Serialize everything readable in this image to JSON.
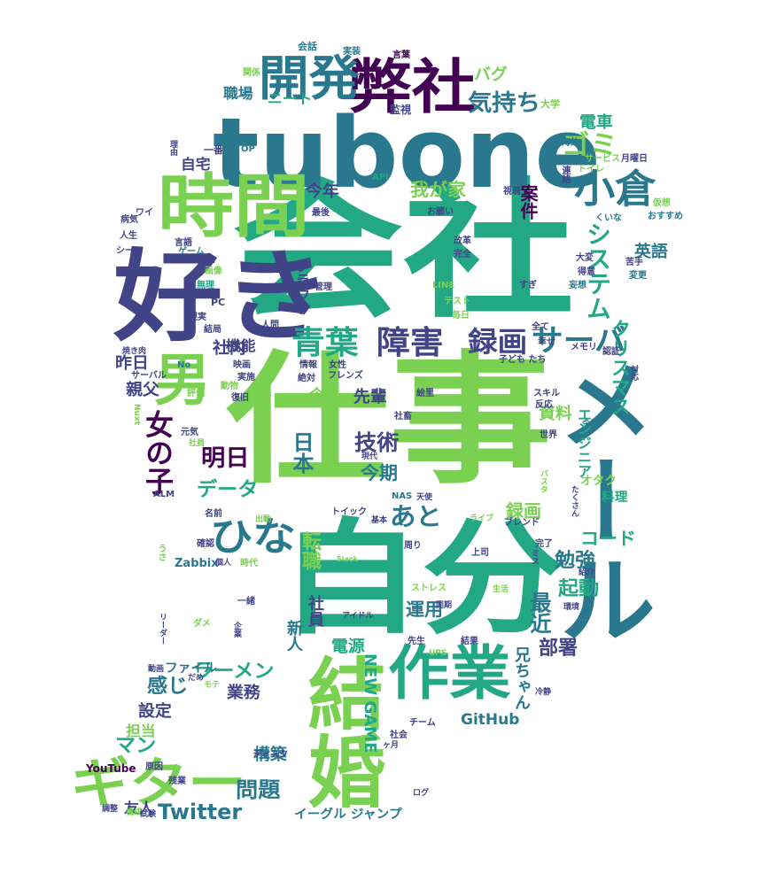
{
  "cloud": {
    "words": [
      {
        "text": "会社",
        "color": "#22a884"
      },
      {
        "text": "仕事",
        "color": "#7ad151"
      },
      {
        "text": "tubone",
        "color": "#2a788e"
      },
      {
        "text": "自分",
        "color": "#22a884"
      },
      {
        "text": "好き",
        "color": "#414487"
      },
      {
        "text": "時間",
        "color": "#7ad151"
      },
      {
        "text": "弊社",
        "color": "#440154"
      },
      {
        "text": "開発",
        "color": "#2a788e"
      },
      {
        "text": "作業",
        "color": "#22a884"
      },
      {
        "text": "結婚",
        "color": "#7ad151"
      },
      {
        "text": "ギター",
        "color": "#7ad151"
      },
      {
        "text": "小倉",
        "color": "#2a788e"
      },
      {
        "text": "メール",
        "color": "#2a788e"
      },
      {
        "text": "男",
        "color": "#7ad151"
      },
      {
        "text": "ひな",
        "color": "#2a788e"
      },
      {
        "text": "青葉",
        "color": "#22a884"
      },
      {
        "text": "障害",
        "color": "#414487"
      },
      {
        "text": "録画",
        "color": "#414487"
      },
      {
        "text": "サーバ",
        "color": "#2a788e"
      },
      {
        "text": "気持ち",
        "color": "#2a788e"
      },
      {
        "text": "Twitter",
        "color": "#2a788e"
      },
      {
        "text": "問題",
        "color": "#2a788e"
      },
      {
        "text": "GitHub",
        "color": "#2a788e"
      },
      {
        "text": "NEW GAME",
        "color": "#22a884"
      },
      {
        "text": "ゴミ",
        "color": "#7ad151"
      },
      {
        "text": "電車",
        "color": "#22a884"
      },
      {
        "text": "システム",
        "color": "#22a884"
      },
      {
        "text": "クリスマス",
        "color": "#22a884"
      },
      {
        "text": "女の子",
        "color": "#440154"
      },
      {
        "text": "明日",
        "color": "#440154"
      },
      {
        "text": "データ",
        "color": "#22a884"
      },
      {
        "text": "技術",
        "color": "#414487"
      },
      {
        "text": "日本",
        "color": "#2a788e"
      },
      {
        "text": "今期",
        "color": "#2a788e"
      },
      {
        "text": "あと",
        "color": "#2a788e"
      },
      {
        "text": "転職",
        "color": "#7ad151"
      },
      {
        "text": "録画",
        "color": "#7ad151"
      },
      {
        "text": "コード",
        "color": "#22a884"
      },
      {
        "text": "勉強",
        "color": "#2a788e"
      },
      {
        "text": "起動",
        "color": "#22a884"
      },
      {
        "text": "最近",
        "color": "#2a788e"
      },
      {
        "text": "部署",
        "color": "#414487"
      },
      {
        "text": "兄ちゃん",
        "color": "#2a788e"
      },
      {
        "text": "運用",
        "color": "#2a788e"
      },
      {
        "text": "ラーメン",
        "color": "#22a884"
      },
      {
        "text": "マン",
        "color": "#22a884"
      },
      {
        "text": "感じ",
        "color": "#2a788e"
      },
      {
        "text": "業務",
        "color": "#414487"
      },
      {
        "text": "構築",
        "color": "#2a788e"
      },
      {
        "text": "設定",
        "color": "#414487"
      },
      {
        "text": "新人",
        "color": "#2a788e"
      },
      {
        "text": "社員",
        "color": "#414487"
      },
      {
        "text": "電源",
        "color": "#22a884"
      },
      {
        "text": "英語",
        "color": "#2a788e"
      },
      {
        "text": "我が家",
        "color": "#7ad151"
      },
      {
        "text": "今年",
        "color": "#414487"
      },
      {
        "text": "自宅",
        "color": "#414487"
      },
      {
        "text": "職場",
        "color": "#2a788e"
      },
      {
        "text": "社内",
        "color": "#414487"
      },
      {
        "text": "機能",
        "color": "#414487"
      },
      {
        "text": "昨日",
        "color": "#414487"
      },
      {
        "text": "親父",
        "color": "#414487"
      },
      {
        "text": "先輩",
        "color": "#414487"
      },
      {
        "text": "企画",
        "color": "#7ad151"
      },
      {
        "text": "資料",
        "color": "#7ad151"
      },
      {
        "text": "案件",
        "color": "#440154"
      },
      {
        "text": "バグ",
        "color": "#7ad151"
      },
      {
        "text": "ニート",
        "color": "#22a884"
      },
      {
        "text": "クラウド",
        "color": "#414487"
      },
      {
        "text": "担当",
        "color": "#7ad151"
      },
      {
        "text": "イーグル ジャンプ",
        "color": "#2a788e"
      },
      {
        "text": "友人",
        "color": "#414487"
      },
      {
        "text": "YouTube",
        "color": "#440154"
      },
      {
        "text": "Zabbix",
        "color": "#2a788e"
      },
      {
        "text": "ファイル",
        "color": "#2a788e"
      },
      {
        "text": "エンジニア",
        "color": "#22a884"
      },
      {
        "text": "料理",
        "color": "#22a884"
      },
      {
        "text": "オタク",
        "color": "#7ad151"
      },
      {
        "text": "会話",
        "color": "#2a788e"
      },
      {
        "text": "実装",
        "color": "#2a788e"
      },
      {
        "text": "言葉",
        "color": "#440154"
      },
      {
        "text": "関係",
        "color": "#7ad151"
      },
      {
        "text": "監視",
        "color": "#414487"
      },
      {
        "text": "大学",
        "color": "#7ad151"
      },
      {
        "text": "海外",
        "color": "#2a788e"
      },
      {
        "text": "サービス",
        "color": "#7ad151"
      },
      {
        "text": "月曜日",
        "color": "#414487"
      },
      {
        "text": "連絡",
        "color": "#414487"
      },
      {
        "text": "トイレ",
        "color": "#7ad151"
      },
      {
        "text": "視聴",
        "color": "#414487"
      },
      {
        "text": "仮想",
        "color": "#7ad151"
      },
      {
        "text": "おすすめ",
        "color": "#2a788e"
      },
      {
        "text": "くいな",
        "color": "#2a788e"
      },
      {
        "text": "API",
        "color": "#22a884"
      },
      {
        "text": "最後",
        "color": "#414487"
      },
      {
        "text": "お願い",
        "color": "#414487"
      },
      {
        "text": "一番",
        "color": "#414487"
      },
      {
        "text": "OP",
        "color": "#2a788e"
      },
      {
        "text": "ワイ",
        "color": "#414487"
      },
      {
        "text": "病気",
        "color": "#414487"
      },
      {
        "text": "人生",
        "color": "#414487"
      },
      {
        "text": "シーン",
        "color": "#414487"
      },
      {
        "text": "言語",
        "color": "#414487"
      },
      {
        "text": "ゲーム",
        "color": "#2a788e"
      },
      {
        "text": "CI",
        "color": "#414487"
      },
      {
        "text": "画像",
        "color": "#7ad151"
      },
      {
        "text": "無理",
        "color": "#22a884"
      },
      {
        "text": "PC",
        "color": "#414487"
      },
      {
        "text": "現実",
        "color": "#414487"
      },
      {
        "text": "結局",
        "color": "#414487"
      },
      {
        "text": "人間",
        "color": "#414487"
      },
      {
        "text": "管理",
        "color": "#414487"
      },
      {
        "text": "改革",
        "color": "#414487"
      },
      {
        "text": "完全",
        "color": "#414487"
      },
      {
        "text": "大変",
        "color": "#414487"
      },
      {
        "text": "得意",
        "color": "#414487"
      },
      {
        "text": "苦手",
        "color": "#414487"
      },
      {
        "text": "変更",
        "color": "#2a788e"
      },
      {
        "text": "すぎ",
        "color": "#414487"
      },
      {
        "text": "妄想",
        "color": "#2a788e"
      },
      {
        "text": "LINE",
        "color": "#7ad151"
      },
      {
        "text": "テスト",
        "color": "#7ad151"
      },
      {
        "text": "毎日",
        "color": "#7ad151"
      },
      {
        "text": "全て",
        "color": "#414487"
      },
      {
        "text": "幸せ",
        "color": "#414487"
      },
      {
        "text": "メモリ",
        "color": "#414487"
      },
      {
        "text": "子ども たち",
        "color": "#414487"
      },
      {
        "text": "認証",
        "color": "#414487"
      },
      {
        "text": "焼き肉",
        "color": "#414487"
      },
      {
        "text": "No",
        "color": "#2a788e"
      },
      {
        "text": "サーバル",
        "color": "#414487"
      },
      {
        "text": "映画",
        "color": "#414487"
      },
      {
        "text": "実施",
        "color": "#414487"
      },
      {
        "text": "情報",
        "color": "#414487"
      },
      {
        "text": "絶対",
        "color": "#414487"
      },
      {
        "text": "女性",
        "color": "#414487"
      },
      {
        "text": "フレンズ",
        "color": "#414487"
      },
      {
        "text": "動物",
        "color": "#7ad151"
      },
      {
        "text": "復旧",
        "color": "#414487"
      },
      {
        "text": "評価",
        "color": "#7ad151"
      },
      {
        "text": "Nuxt",
        "color": "#7ad151"
      },
      {
        "text": "絵里",
        "color": "#414487"
      },
      {
        "text": "社畜",
        "color": "#414487"
      },
      {
        "text": "スキル",
        "color": "#414487"
      },
      {
        "text": "反応",
        "color": "#414487"
      },
      {
        "text": "今回",
        "color": "#2a788e"
      },
      {
        "text": "元気",
        "color": "#414487"
      },
      {
        "text": "社員",
        "color": "#7ad151"
      },
      {
        "text": "世界",
        "color": "#414487"
      },
      {
        "text": "現代",
        "color": "#414487"
      },
      {
        "text": "バスタ",
        "color": "#7ad151"
      },
      {
        "text": "ALM",
        "color": "#414487"
      },
      {
        "text": "NAS",
        "color": "#2a788e"
      },
      {
        "text": "天使",
        "color": "#414487"
      },
      {
        "text": "トイック",
        "color": "#414487"
      },
      {
        "text": "名前",
        "color": "#414487"
      },
      {
        "text": "出動",
        "color": "#7ad151"
      },
      {
        "text": "基本",
        "color": "#414487"
      },
      {
        "text": "ライブ",
        "color": "#7ad151"
      },
      {
        "text": "ブレンド",
        "color": "#414487"
      },
      {
        "text": "うさ",
        "color": "#7ad151"
      },
      {
        "text": "確認",
        "color": "#414487"
      },
      {
        "text": "個人",
        "color": "#414487"
      },
      {
        "text": "時代",
        "color": "#7ad151"
      },
      {
        "text": "Slack",
        "color": "#7ad151"
      },
      {
        "text": "周り",
        "color": "#414487"
      },
      {
        "text": "上司",
        "color": "#414487"
      },
      {
        "text": "完了",
        "color": "#414487"
      },
      {
        "text": "紹介",
        "color": "#414487"
      },
      {
        "text": "生活",
        "color": "#7ad151"
      },
      {
        "text": "環境",
        "color": "#414487"
      },
      {
        "text": "一緒",
        "color": "#414487"
      },
      {
        "text": "アイドル",
        "color": "#414487"
      },
      {
        "text": "同期",
        "color": "#414487"
      },
      {
        "text": "ストレス",
        "color": "#7ad151"
      },
      {
        "text": "リーダー",
        "color": "#414487"
      },
      {
        "text": "ダメ",
        "color": "#7ad151"
      },
      {
        "text": "企業",
        "color": "#414487"
      },
      {
        "text": "先生",
        "color": "#414487"
      },
      {
        "text": "結果",
        "color": "#414487"
      },
      {
        "text": "UPS",
        "color": "#7ad151"
      },
      {
        "text": "動画",
        "color": "#414487"
      },
      {
        "text": "だめ",
        "color": "#414487"
      },
      {
        "text": "モテ",
        "color": "#7ad151"
      },
      {
        "text": "冷静",
        "color": "#414487"
      },
      {
        "text": "チーム",
        "color": "#414487"
      },
      {
        "text": "社会",
        "color": "#414487"
      },
      {
        "text": "ディスク",
        "color": "#414487"
      },
      {
        "text": "ヶ月",
        "color": "#414487"
      },
      {
        "text": "原因",
        "color": "#414487"
      },
      {
        "text": "残業",
        "color": "#414487"
      },
      {
        "text": "構成",
        "color": "#7ad151"
      },
      {
        "text": "調整",
        "color": "#414487"
      },
      {
        "text": "試験",
        "color": "#414487"
      },
      {
        "text": "ログ",
        "color": "#414487"
      },
      {
        "text": "理由",
        "color": "#414487"
      },
      {
        "text": "対応",
        "color": "#414487"
      },
      {
        "text": "ミス",
        "color": "#414487"
      },
      {
        "text": "たくさん",
        "color": "#414487"
      }
    ]
  }
}
